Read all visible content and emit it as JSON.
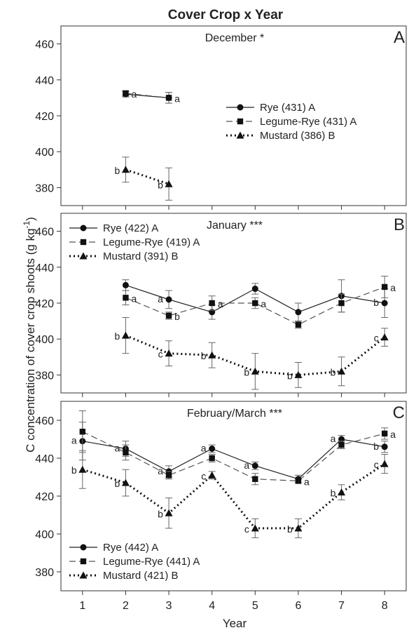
{
  "figure": {
    "title": "Cover Crop x Year",
    "ylabel_main": "C concentration of cover crop shoots (g kg",
    "ylabel_sup": "-1",
    "ylabel_end": ")",
    "xlabel": "Year"
  },
  "chart_data": [
    {
      "type": "line",
      "panel": "A",
      "title": "December *",
      "xlim": [
        0.5,
        8.5
      ],
      "ylim": [
        370,
        470
      ],
      "yticks": [
        380,
        400,
        420,
        440,
        460
      ],
      "xticks": [
        1,
        2,
        3,
        4,
        5,
        6,
        7,
        8
      ],
      "grid": false,
      "legend": "right",
      "series": [
        {
          "name": "Rye (431) A",
          "marker": "circle",
          "line": "solid",
          "x": [
            2,
            3
          ],
          "y": [
            432,
            430
          ],
          "err": [
            1.5,
            3
          ],
          "labels": [
            "",
            ""
          ]
        },
        {
          "name": "Legume-Rye (431) A",
          "marker": "square",
          "line": "dashed",
          "x": [
            2,
            3
          ],
          "y": [
            432.5,
            430
          ],
          "err": [
            1.5,
            3
          ],
          "labels": [
            "a",
            "a"
          ]
        },
        {
          "name": "Mustard (386) B",
          "marker": "triangle",
          "line": "dotted",
          "x": [
            2,
            3
          ],
          "y": [
            390,
            382
          ],
          "err": [
            7,
            9
          ],
          "labels": [
            "b",
            "b"
          ]
        }
      ]
    },
    {
      "type": "line",
      "panel": "B",
      "title": "January ***",
      "xlim": [
        0.5,
        8.5
      ],
      "ylim": [
        370,
        470
      ],
      "yticks": [
        380,
        400,
        420,
        440,
        460
      ],
      "xticks": [
        1,
        2,
        3,
        4,
        5,
        6,
        7,
        8
      ],
      "grid": false,
      "legend": "top-left",
      "series": [
        {
          "name": "Rye (422) A",
          "marker": "circle",
          "line": "solid",
          "x": [
            2,
            3,
            4,
            5,
            6,
            7,
            8
          ],
          "y": [
            430,
            422,
            415,
            428,
            415,
            424,
            420
          ],
          "err": [
            3,
            5,
            4,
            3,
            5,
            9,
            8
          ],
          "labels": [
            "",
            "a",
            "",
            "",
            "",
            "",
            "b"
          ]
        },
        {
          "name": "Legume-Rye (419) A",
          "marker": "square",
          "line": "dashed",
          "x": [
            2,
            3,
            4,
            5,
            6,
            7,
            8
          ],
          "y": [
            423,
            413,
            420,
            420,
            408,
            420,
            429
          ],
          "err": [
            4,
            2,
            4,
            3,
            2,
            5,
            6
          ],
          "labels": [
            "a",
            "b",
            "a",
            "a",
            "",
            "",
            "a"
          ]
        },
        {
          "name": "Mustard (391) B",
          "marker": "triangle",
          "line": "dotted",
          "x": [
            2,
            3,
            4,
            5,
            6,
            7,
            8
          ],
          "y": [
            402,
            392,
            391,
            382,
            380,
            382,
            401
          ],
          "err": [
            10,
            7,
            7,
            10,
            7,
            8,
            5
          ],
          "labels": [
            "b",
            "c",
            "b",
            "b",
            "b",
            "b",
            "c"
          ]
        }
      ]
    },
    {
      "type": "line",
      "panel": "C",
      "title": "February/March ***",
      "xlim": [
        0.5,
        8.5
      ],
      "ylim": [
        370,
        470
      ],
      "yticks": [
        380,
        400,
        420,
        440,
        460
      ],
      "xticks": [
        1,
        2,
        3,
        4,
        5,
        6,
        7,
        8
      ],
      "grid": false,
      "legend": "bottom-left",
      "series": [
        {
          "name": "Rye (442) A",
          "marker": "circle",
          "line": "solid",
          "x": [
            1,
            2,
            3,
            4,
            5,
            6,
            7,
            8
          ],
          "y": [
            449,
            445,
            433,
            445,
            436,
            429,
            450,
            446
          ],
          "err": [
            10,
            4,
            3,
            2,
            2,
            2,
            2,
            3
          ],
          "labels": [
            "a",
            "a",
            "a",
            "a",
            "a",
            "",
            "a",
            "b"
          ]
        },
        {
          "name": "Legume-Rye (441) A",
          "marker": "square",
          "line": "dashed",
          "x": [
            1,
            2,
            3,
            4,
            5,
            6,
            7,
            8
          ],
          "y": [
            454,
            443,
            431,
            440,
            429,
            428,
            447,
            453
          ],
          "err": [
            11,
            4,
            2,
            2,
            3,
            1,
            2,
            3
          ],
          "labels": [
            "",
            "",
            "",
            "",
            "",
            "a",
            "",
            "a"
          ]
        },
        {
          "name": "Mustard (421) B",
          "marker": "triangle",
          "line": "dotted",
          "x": [
            1,
            2,
            3,
            4,
            5,
            6,
            7,
            8
          ],
          "y": [
            434,
            427,
            411,
            431,
            403,
            403,
            422,
            437
          ],
          "err": [
            10,
            7,
            8,
            2,
            5,
            5,
            4,
            5
          ],
          "labels": [
            "b",
            "b",
            "b",
            "c",
            "c",
            "b",
            "b",
            "c"
          ]
        }
      ]
    }
  ]
}
